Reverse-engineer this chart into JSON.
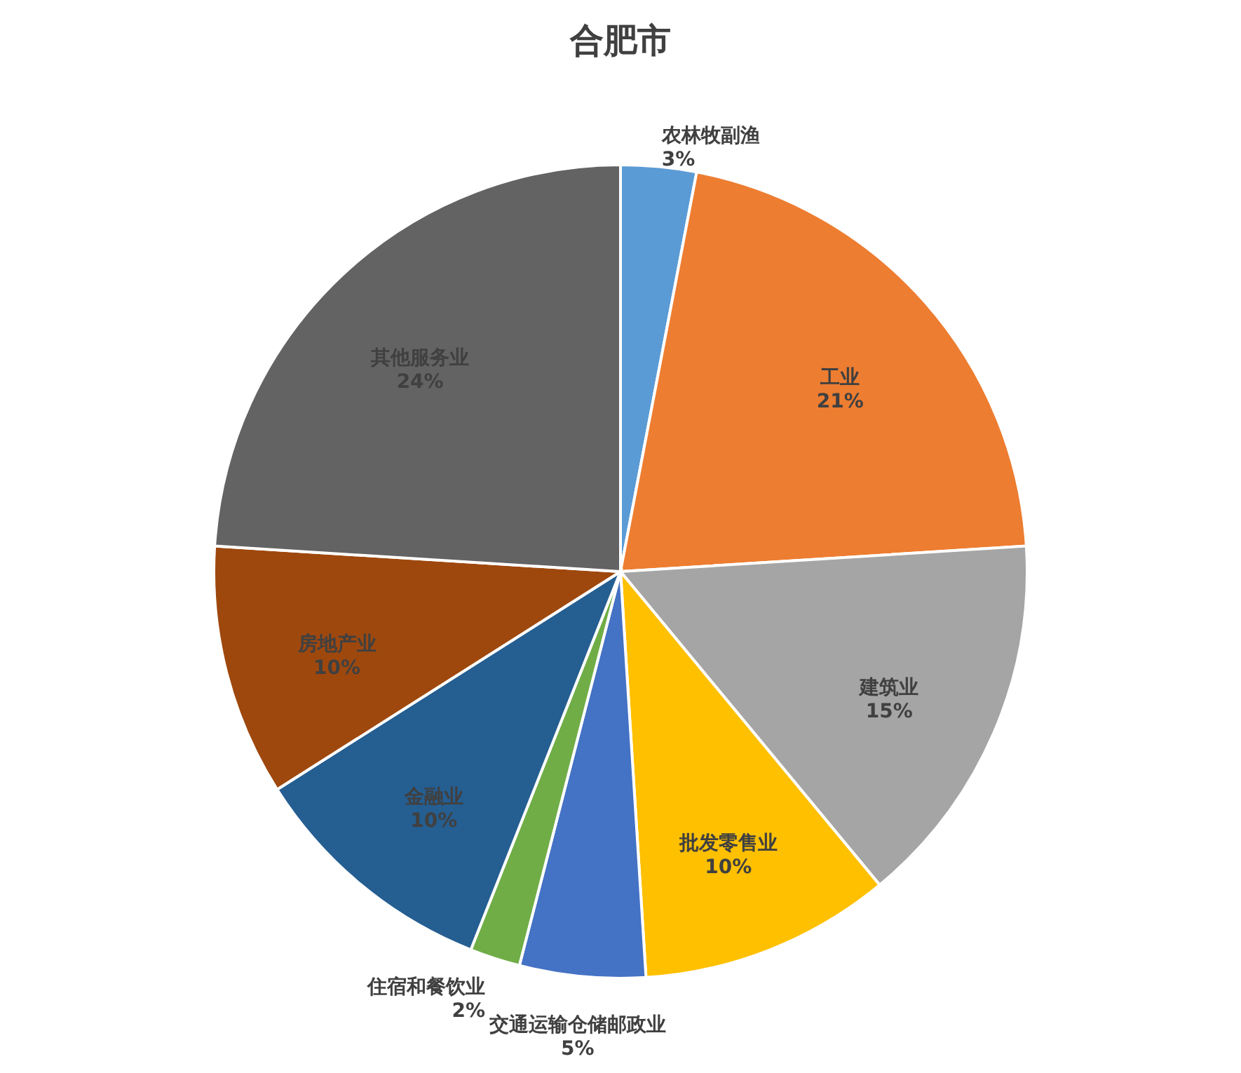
{
  "chart_data": {
    "type": "pie",
    "title": "合肥市",
    "categories": [
      "农林牧副渔",
      "工业",
      "建筑业",
      "批发零售业",
      "交通运输仓储邮政业",
      "住宿和餐饮业",
      "金融业",
      "房地产业",
      "其他服务业"
    ],
    "values": [
      3,
      21,
      15,
      10,
      5,
      2,
      10,
      10,
      24
    ],
    "value_labels": [
      "3%",
      "21%",
      "15%",
      "10%",
      "5%",
      "2%",
      "10%",
      "10%",
      "24%"
    ],
    "colors": [
      "#5b9bd5",
      "#ed7d31",
      "#a5a5a5",
      "#ffc000",
      "#4472c4",
      "#70ad47",
      "#255e91",
      "#9e480e",
      "#636363"
    ]
  }
}
